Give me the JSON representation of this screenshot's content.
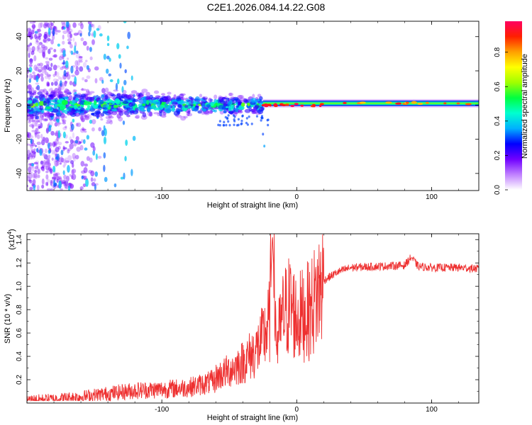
{
  "title": "C2E1.2026.084.14.22.G08",
  "chart_data": [
    {
      "type": "heatmap",
      "xlabel": "Height of straight line (km)",
      "ylabel": "Frequency (Hz)",
      "xlim": [
        -200,
        135
      ],
      "ylim": [
        -50,
        49
      ],
      "xticks": [
        -100,
        0,
        100
      ],
      "xtick_labels": [
        "-100",
        "0",
        "100"
      ],
      "yticks": [
        -40,
        -20,
        0,
        20,
        40
      ],
      "ytick_labels": [
        "-40",
        "-20",
        "0",
        "20",
        "40"
      ],
      "colorbar": {
        "label": "Normalized spectral amplitude",
        "range": [
          0.0,
          0.98
        ],
        "ticks": [
          0.0,
          0.2,
          0.4,
          0.6,
          0.8
        ],
        "tick_labels": [
          "0.0",
          "0.2",
          "0.4",
          "0.6",
          "0.8"
        ],
        "colors": [
          "#ffffff",
          "#c080ff",
          "#7000ff",
          "#0000ff",
          "#00b0ff",
          "#00ffd0",
          "#00ff40",
          "#a0ff00",
          "#ffff00",
          "#ffa000",
          "#ff2000",
          "#ff0060"
        ]
      },
      "features": [
        {
          "name": "scattered noise",
          "x_range": [
            -200,
            -140
          ],
          "freq_range": [
            -50,
            49
          ],
          "amplitude": 0.1
        },
        {
          "name": "noisy band",
          "x_range": [
            -200,
            -25
          ],
          "freq_range": [
            -10,
            10
          ],
          "amplitude": 0.45
        },
        {
          "name": "narrow carrier line",
          "x_range": [
            -25,
            135
          ],
          "freq_center": 1,
          "amplitude": 0.6
        },
        {
          "name": "carrier peaks",
          "x_range": [
            -25,
            20
          ],
          "freq_center": 0,
          "amplitude": 0.95
        }
      ]
    },
    {
      "type": "line",
      "xlabel": "Height of straight line (km)",
      "ylabel": "SNR (10 * v/v)",
      "y_scale_label": "(x10",
      "y_scale_exponent": "4",
      "y_scale_suffix": ")",
      "xlim": [
        -200,
        135
      ],
      "ylim": [
        0,
        1.45
      ],
      "xticks": [
        -100,
        0,
        100
      ],
      "xtick_labels": [
        "-100",
        "0",
        "100"
      ],
      "yticks": [
        0.2,
        0.4,
        0.6,
        0.8,
        1.0,
        1.2,
        1.4
      ],
      "ytick_labels": [
        "0.2",
        "0.4",
        "0.6",
        "0.8",
        "1.0",
        "1.2",
        "1.4"
      ],
      "color": "#ee3030",
      "series": [
        {
          "name": "SNR",
          "x": [
            -200,
            -180,
            -160,
            -140,
            -120,
            -100,
            -80,
            -60,
            -50,
            -40,
            -30,
            -25,
            -20,
            -18,
            -15,
            -10,
            -5,
            0,
            10,
            20,
            30,
            40,
            60,
            80,
            85,
            90,
            100,
            120,
            135
          ],
          "y": [
            0.04,
            0.05,
            0.07,
            0.1,
            0.13,
            0.14,
            0.16,
            0.22,
            0.28,
            0.35,
            0.45,
            0.55,
            0.7,
            1.45,
            0.5,
            0.75,
            0.85,
            0.72,
            0.8,
            1.05,
            1.12,
            1.16,
            1.17,
            1.18,
            1.25,
            1.17,
            1.16,
            1.16,
            1.15
          ]
        }
      ]
    }
  ]
}
